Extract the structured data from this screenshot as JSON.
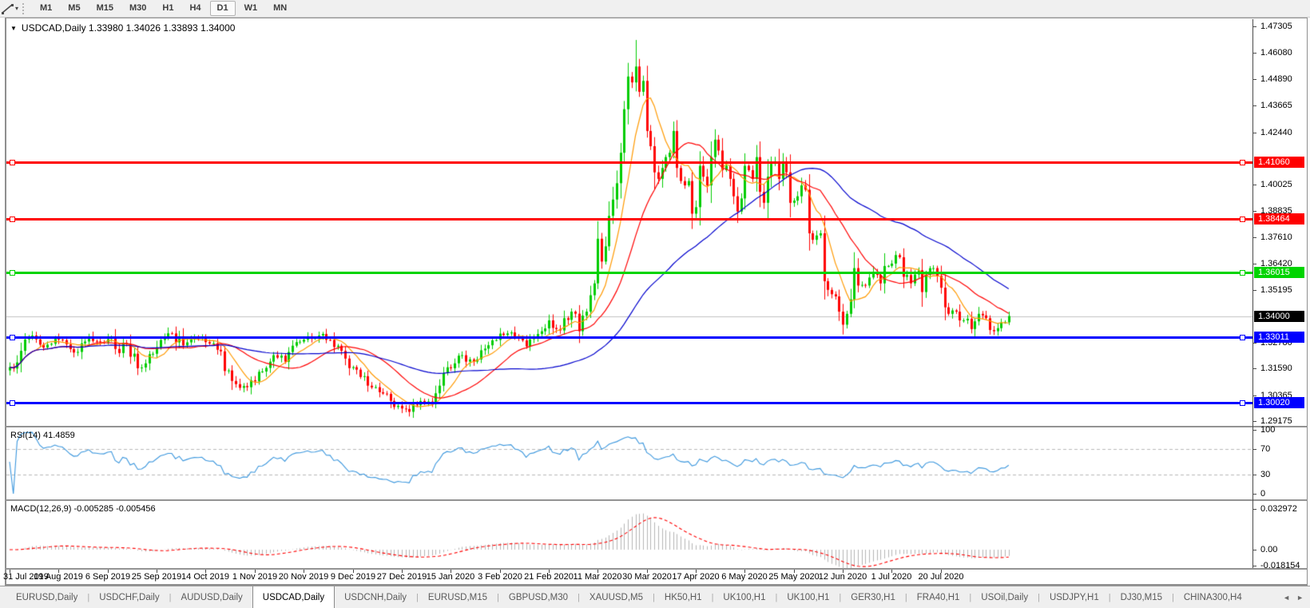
{
  "icons": {
    "tool_dropdown": "▾",
    "symbol_dropdown": "▼",
    "scroll_left": "◄",
    "scroll_right": "►"
  },
  "colors": {
    "background": "#ffffff",
    "toolbar_bg": "#f0f0f0",
    "tab_bar_bg": "#efefef",
    "axis_text": "#000000",
    "current_price_label_bg": "#000000",
    "up_candle": "#00cc00",
    "down_candle": "#ff0000"
  },
  "toolbar": {
    "timeframes": [
      "M1",
      "M5",
      "M15",
      "M30",
      "H1",
      "H4",
      "D1",
      "W1",
      "MN"
    ],
    "active_timeframe": "D1"
  },
  "chart_header": {
    "text": "USDCAD,Daily  1.33980 1.34026 1.33893 1.34000"
  },
  "chart_data": {
    "type": "candlestick",
    "symbol": "USDCAD",
    "period": "Daily",
    "open": "1.33980",
    "high": "1.34026",
    "low": "1.33893",
    "close": "1.34000",
    "up_color": "#00cc00",
    "down_color": "#ff0000",
    "price_axis_ticks": [
      "1.47305",
      "1.46080",
      "1.44890",
      "1.43665",
      "1.42440",
      "1.40025",
      "1.38835",
      "1.37610",
      "1.36420",
      "1.35195",
      "1.32780",
      "1.31590",
      "1.30365",
      "1.29175"
    ],
    "horizontal_lines": [
      {
        "price": 1.4106,
        "label": "1.41060",
        "color": "#ff0000"
      },
      {
        "price": 1.38464,
        "label": "1.38464",
        "color": "#ff0000"
      },
      {
        "price": 1.36015,
        "label": "1.36015",
        "color": "#00d400"
      },
      {
        "price": 1.33011,
        "label": "1.33011",
        "color": "#0000ff"
      },
      {
        "price": 1.3002,
        "label": "1.30020",
        "color": "#0000ff"
      }
    ],
    "current_price": {
      "price": 1.34,
      "label": "1.34000",
      "line_color": "#c0c0c0",
      "box_color": "#000000"
    },
    "dates": [
      "31 Jul 2019",
      "19 Aug 2019",
      "6 Sep 2019",
      "25 Sep 2019",
      "14 Oct 2019",
      "1 Nov 2019",
      "20 Nov 2019",
      "9 Dec 2019",
      "27 Dec 2019",
      "15 Jan 2020",
      "3 Feb 2020",
      "21 Feb 2020",
      "11 Mar 2020",
      "30 Mar 2020",
      "17 Apr 2020",
      "6 May 2020",
      "25 May 2020",
      "12 Jun 2020",
      "1 Jul 2020",
      "20 Jul 2020"
    ],
    "date_day_indices": [
      0,
      13,
      26,
      39,
      52,
      65,
      78,
      91,
      104,
      117,
      130,
      143,
      156,
      169,
      182,
      195,
      208,
      221,
      234,
      247
    ],
    "num_candles": 266,
    "close_keypoints": [
      [
        0,
        1.3165
      ],
      [
        3,
        1.324
      ],
      [
        6,
        1.331
      ],
      [
        9,
        1.3255
      ],
      [
        12,
        1.33
      ],
      [
        15,
        1.327
      ],
      [
        18,
        1.3235
      ],
      [
        21,
        1.3305
      ],
      [
        24,
        1.328
      ],
      [
        27,
        1.33
      ],
      [
        29,
        1.323
      ],
      [
        31,
        1.327
      ],
      [
        34,
        1.316
      ],
      [
        37,
        1.3225
      ],
      [
        40,
        1.329
      ],
      [
        43,
        1.332
      ],
      [
        46,
        1.3265
      ],
      [
        49,
        1.33
      ],
      [
        52,
        1.328
      ],
      [
        55,
        1.3245
      ],
      [
        58,
        1.315
      ],
      [
        61,
        1.307
      ],
      [
        64,
        1.3105
      ],
      [
        67,
        1.3145
      ],
      [
        70,
        1.322
      ],
      [
        73,
        1.319
      ],
      [
        76,
        1.328
      ],
      [
        79,
        1.3305
      ],
      [
        82,
        1.331
      ],
      [
        85,
        1.329
      ],
      [
        88,
        1.324
      ],
      [
        91,
        1.3165
      ],
      [
        93,
        1.312
      ],
      [
        95,
        1.308
      ],
      [
        98,
        1.305
      ],
      [
        101,
        1.301
      ],
      [
        104,
        1.2975
      ],
      [
        106,
        1.296
      ],
      [
        108,
        1.299
      ],
      [
        110,
        1.3
      ],
      [
        112,
        1.2995
      ],
      [
        114,
        1.308
      ],
      [
        117,
        1.316
      ],
      [
        120,
        1.322
      ],
      [
        123,
        1.319
      ],
      [
        126,
        1.325
      ],
      [
        129,
        1.329
      ],
      [
        132,
        1.332
      ],
      [
        135,
        1.33
      ],
      [
        137,
        1.326
      ],
      [
        139,
        1.33
      ],
      [
        141,
        1.333
      ],
      [
        143,
        1.338
      ],
      [
        145,
        1.334
      ],
      [
        147,
        1.339
      ],
      [
        149,
        1.342
      ],
      [
        151,
        1.333
      ],
      [
        153,
        1.342
      ],
      [
        155,
        1.355
      ],
      [
        156,
        1.3755
      ],
      [
        157,
        1.365
      ],
      [
        158,
        1.372
      ],
      [
        159,
        1.386
      ],
      [
        160,
        1.3935
      ],
      [
        161,
        1.401
      ],
      [
        162,
        1.415
      ],
      [
        163,
        1.435
      ],
      [
        164,
        1.45
      ],
      [
        165,
        1.4473
      ],
      [
        166,
        1.4546
      ],
      [
        167,
        1.443
      ],
      [
        168,
        1.448
      ],
      [
        169,
        1.425
      ],
      [
        170,
        1.418
      ],
      [
        171,
        1.406
      ],
      [
        172,
        1.403
      ],
      [
        173,
        1.408
      ],
      [
        174,
        1.413
      ],
      [
        175,
        1.415
      ],
      [
        176,
        1.425
      ],
      [
        177,
        1.408
      ],
      [
        178,
        1.402
      ],
      [
        179,
        1.4
      ],
      [
        180,
        1.402
      ],
      [
        181,
        1.387
      ],
      [
        182,
        1.39
      ],
      [
        183,
        1.409
      ],
      [
        184,
        1.404
      ],
      [
        185,
        1.4
      ],
      [
        186,
        1.413
      ],
      [
        187,
        1.421
      ],
      [
        188,
        1.416
      ],
      [
        189,
        1.407
      ],
      [
        190,
        1.409
      ],
      [
        191,
        1.403
      ],
      [
        192,
        1.395
      ],
      [
        193,
        1.388
      ],
      [
        194,
        1.394
      ],
      [
        195,
        1.409
      ],
      [
        196,
        1.407
      ],
      [
        197,
        1.403
      ],
      [
        198,
        1.413
      ],
      [
        199,
        1.397
      ],
      [
        200,
        1.392
      ],
      [
        201,
        1.404
      ],
      [
        202,
        1.41
      ],
      [
        203,
        1.411
      ],
      [
        204,
        1.403
      ],
      [
        205,
        1.411
      ],
      [
        206,
        1.406
      ],
      [
        207,
        1.392
      ],
      [
        208,
        1.393
      ],
      [
        209,
        1.395
      ],
      [
        210,
        1.4
      ],
      [
        211,
        1.398
      ],
      [
        212,
        1.378
      ],
      [
        213,
        1.375
      ],
      [
        214,
        1.377
      ],
      [
        215,
        1.378
      ],
      [
        216,
        1.356
      ],
      [
        217,
        1.352
      ],
      [
        218,
        1.35
      ],
      [
        219,
        1.349
      ],
      [
        220,
        1.342
      ],
      [
        221,
        1.336
      ],
      [
        222,
        1.341
      ],
      [
        224,
        1.362
      ],
      [
        225,
        1.354
      ],
      [
        227,
        1.354
      ],
      [
        229,
        1.36
      ],
      [
        231,
        1.355
      ],
      [
        233,
        1.363
      ],
      [
        235,
        1.368
      ],
      [
        236,
        1.367
      ],
      [
        237,
        1.358
      ],
      [
        239,
        1.355
      ],
      [
        241,
        1.361
      ],
      [
        242,
        1.351
      ],
      [
        243,
        1.359
      ],
      [
        245,
        1.362
      ],
      [
        247,
        1.353
      ],
      [
        248,
        1.344
      ],
      [
        249,
        1.341
      ],
      [
        251,
        1.342
      ],
      [
        253,
        1.338
      ],
      [
        255,
        1.334
      ],
      [
        257,
        1.341
      ],
      [
        259,
        1.339
      ],
      [
        261,
        1.333
      ],
      [
        263,
        1.337
      ],
      [
        265,
        1.34
      ]
    ],
    "spike": {
      "day": 166,
      "high": 1.4668
    },
    "moving_averages": [
      {
        "name": "ma-fast",
        "period": 8,
        "color": "#ff9900"
      },
      {
        "name": "ma-medium",
        "period": 21,
        "color": "#ff0000"
      },
      {
        "name": "ma-slow",
        "period": 55,
        "color": "#0000cd"
      }
    ],
    "rsi": {
      "label": "RSI(14) 41.4859",
      "period": 14,
      "value": 41.4859,
      "axis_labels": [
        "100",
        "70",
        "30",
        "0"
      ],
      "level_lines": [
        70,
        30
      ],
      "line_color": "#3a96dd",
      "level_color": "#b8b8b8"
    },
    "macd": {
      "label": "MACD(12,26,9) -0.005285 -0.005456",
      "fast": 12,
      "slow": 26,
      "signal": 9,
      "main_value": -0.005285,
      "signal_value": -0.005456,
      "axis_labels": [
        "0.032972",
        "0.00",
        "-0.018154"
      ],
      "histogram_color": "#b4b4b4",
      "signal_color": "#ff0000"
    }
  },
  "tabs": {
    "items": [
      {
        "label": "EURUSD,Daily"
      },
      {
        "label": "USDCHF,Daily"
      },
      {
        "label": "AUDUSD,Daily"
      },
      {
        "label": "USDCAD,Daily",
        "active": true
      },
      {
        "label": "USDCNH,Daily"
      },
      {
        "label": "EURUSD,M15"
      },
      {
        "label": "GBPUSD,M30"
      },
      {
        "label": "XAUUSD,M5"
      },
      {
        "label": "HK50,H1"
      },
      {
        "label": "UK100,H1"
      },
      {
        "label": "UK100,H1"
      },
      {
        "label": "GER30,H1"
      },
      {
        "label": "FRA40,H1"
      },
      {
        "label": "USOil,Daily"
      },
      {
        "label": "USDJPY,H1"
      },
      {
        "label": "DJ30,M15"
      },
      {
        "label": "CHINA300,H4"
      }
    ]
  }
}
